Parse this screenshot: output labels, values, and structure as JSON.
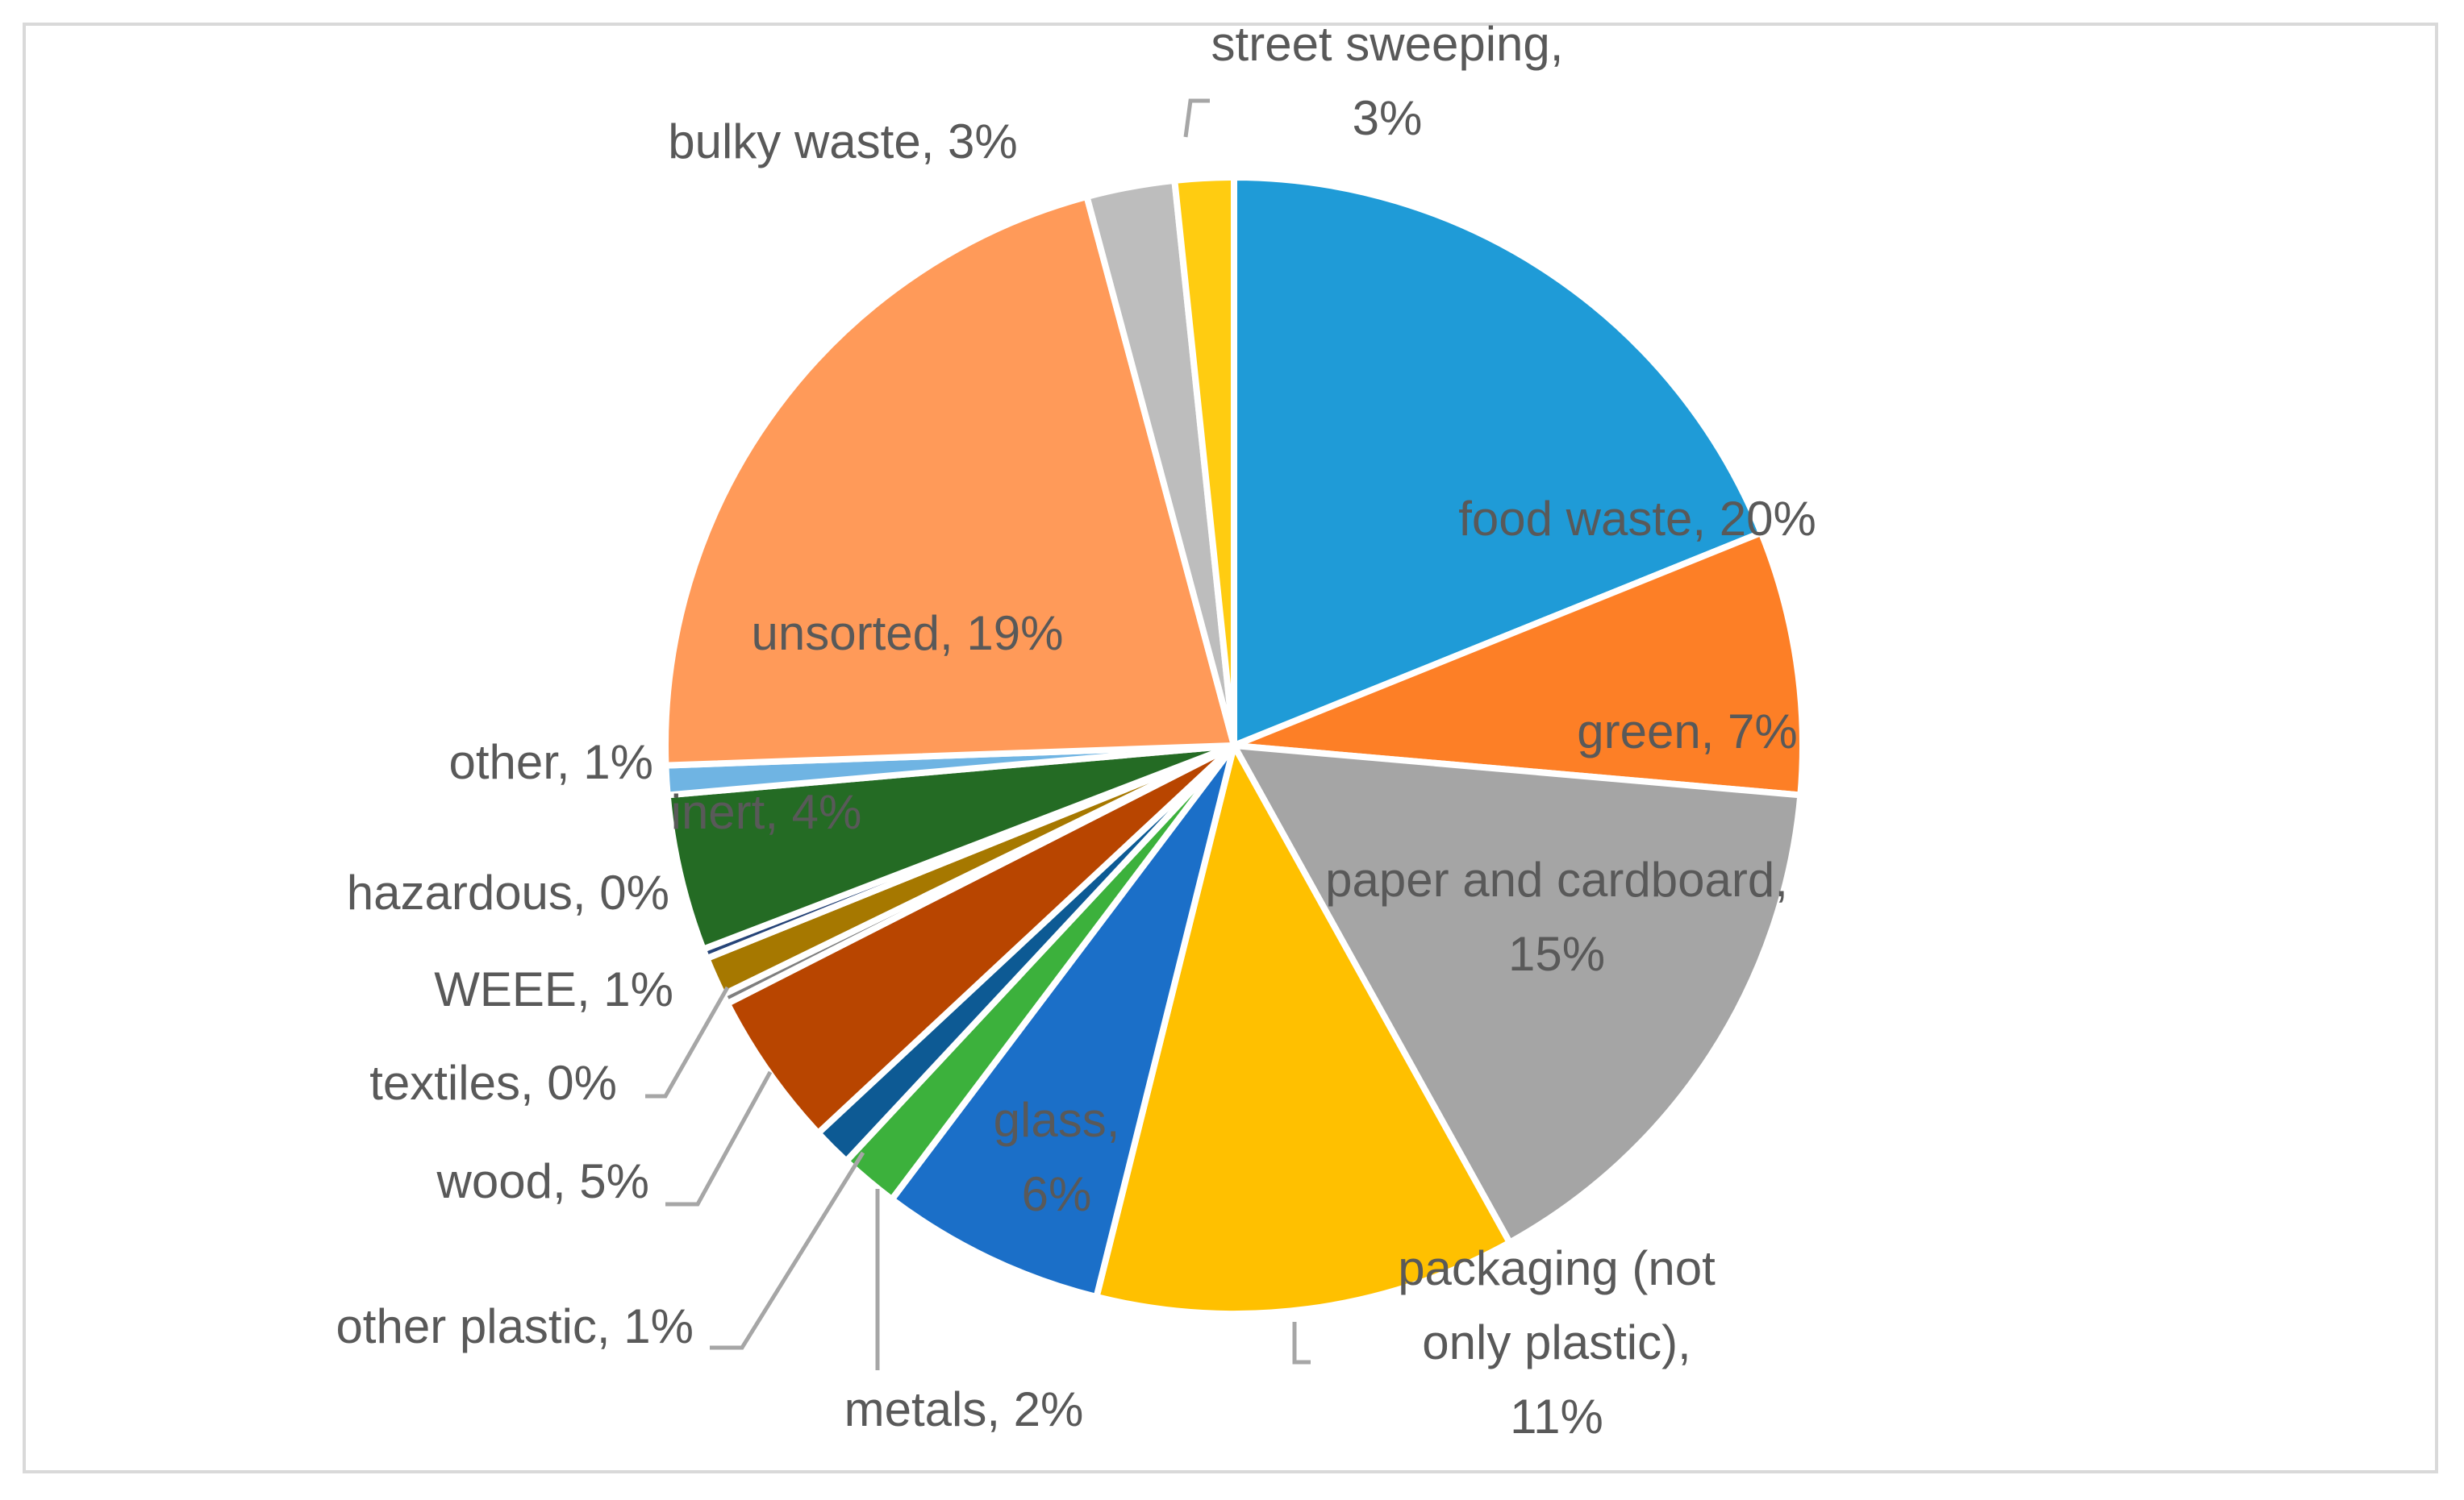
{
  "chart_data": {
    "type": "pie",
    "title": "",
    "slices": [
      {
        "label": "food waste",
        "value": 20,
        "text": "food waste, 20%",
        "color": "#1F9BD7"
      },
      {
        "label": "green",
        "value": 7,
        "text": "green, 7%",
        "color": "#FD7F26"
      },
      {
        "label": "paper and cardboard",
        "value": 15,
        "text": "paper and cardboard, 15%",
        "color": "#A5A5A5"
      },
      {
        "label": "packaging (not only plastic)",
        "value": 11,
        "text": "packaging (not only plastic), 11%",
        "color": "#FFC000"
      },
      {
        "label": "glass",
        "value": 6,
        "text": "glass, 6%",
        "color": "#1B6FC8"
      },
      {
        "label": "metals",
        "value": 2,
        "text": "metals, 2%",
        "color": "#3CB13C"
      },
      {
        "label": "other plastic",
        "value": 1,
        "text": "other plastic, 1%",
        "color": "#0D5A94"
      },
      {
        "label": "wood",
        "value": 5,
        "text": "wood, 5%",
        "color": "#B84500"
      },
      {
        "label": "textiles",
        "value": 0,
        "text": "textiles, 0%",
        "color": "#7F7F7F"
      },
      {
        "label": "WEEE",
        "value": 1,
        "text": "WEEE, 1%",
        "color": "#A67800"
      },
      {
        "label": "hazardous",
        "value": 0,
        "text": "hazardous, 0%",
        "color": "#264478"
      },
      {
        "label": "inert",
        "value": 4,
        "text": "inert, 4%",
        "color": "#246B24"
      },
      {
        "label": "other",
        "value": 1,
        "text": "other, 1%",
        "color": "#6FB4E3"
      },
      {
        "label": "unsorted",
        "value": 19,
        "text": "unsorted, 19%",
        "color": "#FF9A59"
      },
      {
        "label": "bulky waste",
        "value": 3,
        "text": "bulky waste, 3%",
        "color": "#BDBDBD"
      },
      {
        "label": "street sweeping",
        "value": 3,
        "text": "street sweeping, 3%",
        "color": "#FFCC11"
      }
    ]
  }
}
